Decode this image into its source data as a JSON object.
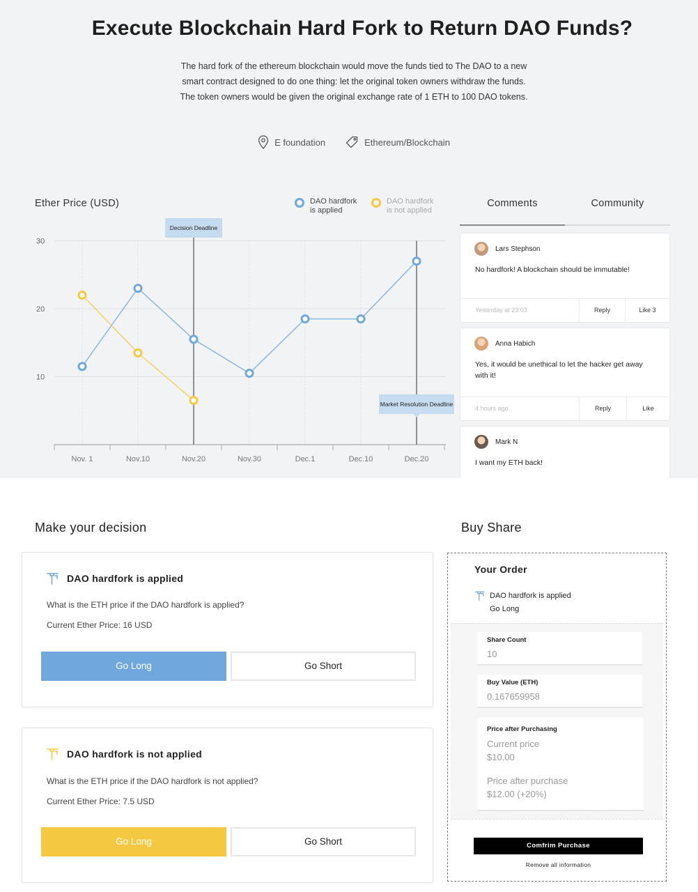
{
  "header": {
    "title": "Execute Blockchain Hard Fork to Return DAO Funds?",
    "description_lines": [
      "The hard fork of the ethereum blockchain would move the funds tied to The DAO to a new",
      "smart contract designed to do one thing: let the original token owners withdraw the funds.",
      "The token owners would be given the original exchange rate of 1 ETH to 100 DAO tokens."
    ],
    "location": "E foundation",
    "tag": "Ethereum/Blockchain",
    "location_icon": "location-pin-icon",
    "tag_icon": "tag-icon"
  },
  "chart_data": {
    "type": "line",
    "title": "Ether Price (USD)",
    "categories": [
      "Nov. 1",
      "Nov.10",
      "Nov.20",
      "Nov.30",
      "Dec.1",
      "Dec.10",
      "Dec.20"
    ],
    "y_ticks": [
      "30",
      "20",
      "10"
    ],
    "ylim": [
      0,
      30
    ],
    "grid": true,
    "legend_position": "top-right",
    "series": [
      {
        "name": "DAO hardfork is applied",
        "legend_lines": [
          "DAO hardfork",
          "is applied"
        ],
        "color": "#6ea8dc",
        "values": [
          11.5,
          23,
          15.5,
          10.5,
          18.5,
          18.5,
          27
        ]
      },
      {
        "name": "DAO hardfork is not applied",
        "legend_lines": [
          "DAO hardfork",
          "is not applied"
        ],
        "color": "#f5c842",
        "values": [
          22,
          13.5,
          6.5,
          null,
          null,
          null,
          null
        ]
      }
    ],
    "annotations": [
      {
        "label": "Decision Deadline",
        "category": "Nov.20"
      },
      {
        "label": "Market Resolution Deadline",
        "category": "Dec.20"
      }
    ]
  },
  "tabs": [
    {
      "label": "Comments",
      "active": true
    },
    {
      "label": "Community",
      "active": false
    }
  ],
  "comments": [
    {
      "author": "Lars Stephson",
      "text": "No hardfork! A blockchain should be immutable!",
      "time": "Yesterday at 23:03",
      "reply": "Reply",
      "like": "Like 3",
      "avatar_color": "#c49a7a"
    },
    {
      "author": "Anna Habich",
      "text": "Yes, it would be unethical to let the hacker get away with it!",
      "time": "4 hours ago",
      "reply": "Reply",
      "like": "Like",
      "avatar_color": "#d9a574"
    },
    {
      "author": "Mark N",
      "text": "I want my ETH back!",
      "avatar_color": "#6a5a4e"
    }
  ],
  "decision": {
    "heading": "Make your decision",
    "cards": [
      {
        "title": "DAO hardfork is applied",
        "question": "What is the ETH price if the DAO hardfork is applied?",
        "price": "Current Ether Price: 16 USD",
        "long": "Go Long",
        "short": "Go Short",
        "color": "#6ea8dc"
      },
      {
        "title": "DAO hardfork is not applied",
        "question": "What is the ETH price if the DAO hardfork is not applied?",
        "price": "Current Ether Price: 7.5 USD",
        "long": "Go Long",
        "short": "Go Short",
        "color": "#f5c842"
      }
    ]
  },
  "buy": {
    "heading": "Buy Share",
    "order_title": "Your Order",
    "order_outcome": "DAO hardfork is applied",
    "order_position": "Go Long",
    "share_count_label": "Share Count",
    "share_count_value": "10",
    "buy_value_label": "Buy Value (ETH)",
    "buy_value_value": "0.167659958",
    "price_label": "Price after Purchasing",
    "current_price_label": "Current price",
    "current_price_value": "$10.00",
    "after_price_label": "Price after purchase",
    "after_price_value": "$12.00 (+20%)",
    "confirm_label": "Comfrim Purchase",
    "remove_label": "Remove all information"
  }
}
